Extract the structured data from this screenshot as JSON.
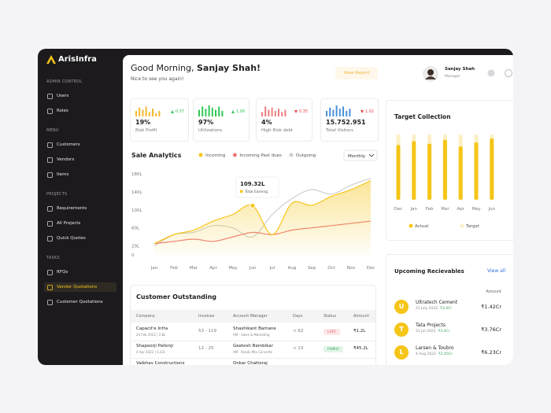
{
  "brand": "ArisInfra",
  "sidebar": {
    "sections": [
      {
        "title": "ADMIN CONTROL",
        "items": [
          {
            "label": "Users"
          },
          {
            "label": "Roles"
          }
        ]
      },
      {
        "title": "MENU",
        "items": [
          {
            "label": "Customers"
          },
          {
            "label": "Vendors"
          },
          {
            "label": "Items"
          }
        ]
      },
      {
        "title": "PROJECTS",
        "items": [
          {
            "label": "Requirements"
          },
          {
            "label": "All Projects"
          },
          {
            "label": "Quick Quotes"
          }
        ]
      },
      {
        "title": "TASKS",
        "items": [
          {
            "label": "RFQs"
          },
          {
            "label": "Vendor Quotations",
            "active": true
          },
          {
            "label": "Customer Quotations"
          }
        ]
      }
    ]
  },
  "header": {
    "greeting": "Good Morning,",
    "name": "Sanjay Shah!",
    "subtitle": "Nice to see you again!",
    "button": "View Report",
    "user": {
      "name": "Sanjay Shah",
      "role": "Manager"
    }
  },
  "kpis": [
    {
      "value": "19%",
      "label": "Risk Profit",
      "change": "0.37",
      "trend": "up",
      "color": "#f5b82e",
      "bars": [
        5,
        8,
        6,
        9,
        4,
        7,
        3,
        5
      ]
    },
    {
      "value": "97%",
      "label": "Utilizations",
      "change": "1.09",
      "trend": "up",
      "color": "#34c759",
      "bars": [
        6,
        9,
        7,
        10,
        8,
        6,
        9,
        5
      ]
    },
    {
      "value": "4%",
      "label": "High Risk debt",
      "change": "0.35",
      "trend": "down",
      "color": "#ef7d7d",
      "bars": [
        4,
        9,
        6,
        8,
        5,
        7,
        4,
        6
      ]
    },
    {
      "value": "15.752.951",
      "label": "Total Visitors",
      "change": "1.02",
      "trend": "down",
      "color": "#4a90d9",
      "bars": [
        5,
        8,
        6,
        10,
        7,
        9,
        5,
        7
      ]
    }
  ],
  "sale_analytics": {
    "type": "line",
    "title": "Sale Analytics",
    "filter": "Monthly",
    "categories": [
      "Jan",
      "Feb",
      "Mar",
      "Apr",
      "May",
      "Jun",
      "Jul",
      "Aug",
      "Sep",
      "Oct",
      "Nov",
      "Dec"
    ],
    "series": [
      {
        "name": "Incoming",
        "color": "#f5c518",
        "area": true,
        "values": [
          25,
          45,
          55,
          75,
          90,
          109.32,
          45,
          115,
          110,
          130,
          145,
          165
        ]
      },
      {
        "name": "Incoming Past dues",
        "color": "#ec7b7b",
        "values": [
          25,
          30,
          35,
          30,
          40,
          50,
          45,
          55,
          60,
          65,
          70,
          75
        ]
      },
      {
        "name": "Outgoing",
        "color": "#cfcfcf",
        "values": [
          20,
          45,
          50,
          65,
          60,
          40,
          90,
          125,
          145,
          135,
          155,
          170
        ]
      }
    ],
    "ylim": [
      0,
      180
    ],
    "yticks": [
      0,
      {
        "value": 20,
        "label": "20L"
      },
      {
        "value": 60,
        "label": "60L"
      },
      {
        "value": 100,
        "label": "100L"
      },
      {
        "value": 140,
        "label": "140L"
      },
      {
        "value": 180,
        "label": "180L"
      }
    ],
    "annotation": {
      "text": "109.32L",
      "label": "Total Earning"
    }
  },
  "customer_outstanding": {
    "title": "Customer Outstanding",
    "columns": [
      "Company",
      "Invoices",
      "Account Manager",
      "Days",
      "Status",
      "Amount"
    ],
    "rows": [
      {
        "company": "Capacit'e Infra",
        "date": "24 Feb 2022 | 2.8L",
        "invoices": "53 - 119",
        "manager": "Shashikant Bamane",
        "manager_role": "AM - Sales & Marketing",
        "days": "< 62",
        "status": "LATE",
        "status_color": "#e05a5a",
        "status_bg": "#fde8e8",
        "amount": "₹1.2L"
      },
      {
        "company": "Shapoorji Pallonji",
        "date": "4 Apr 2022 | 1.22L",
        "invoices": "12 - 25",
        "manager": "Geetesh Bembikar",
        "manager_role": "AM - Ready Mix Concrete",
        "days": "< 13",
        "status": "FAMILY",
        "status_color": "#3aa55c",
        "status_bg": "#e3f5e8",
        "amount": "₹45.2L"
      },
      {
        "company": "Vaibhav Constructions",
        "manager": "Onkar Chattoraj"
      }
    ]
  },
  "target_collection": {
    "type": "bar",
    "title": "Target Collection",
    "categories": [
      "Dec",
      "Jan",
      "Feb",
      "Mar",
      "Apr",
      "May",
      "Jun"
    ],
    "series": [
      {
        "name": "Actual",
        "color": "#f5c518",
        "values": [
          84,
          90,
          86,
          92,
          82,
          88,
          94
        ]
      },
      {
        "name": "Target",
        "color": "#fcefc4",
        "values": [
          100,
          100,
          100,
          100,
          100,
          100,
          100
        ]
      }
    ],
    "ylim": [
      0,
      100
    ]
  },
  "receivables": {
    "title": "Upcoming Recievables",
    "link": "View all",
    "column": "Amount",
    "items": [
      {
        "initial": "U",
        "name": "Ultratech Cement",
        "date": "21 July 2022",
        "due": "₹3.4Cr",
        "amount": "₹1.42Cr"
      },
      {
        "initial": "T",
        "name": "Tata Projects",
        "date": "21 Jul 2022",
        "due": "₹3.4Cr",
        "amount": "₹3.76Cr"
      },
      {
        "initial": "L",
        "name": "Larsen & Toubro",
        "date": "4 Aug 2022",
        "due": "₹2.45Cr",
        "amount": "₹6.23Cr"
      }
    ]
  }
}
